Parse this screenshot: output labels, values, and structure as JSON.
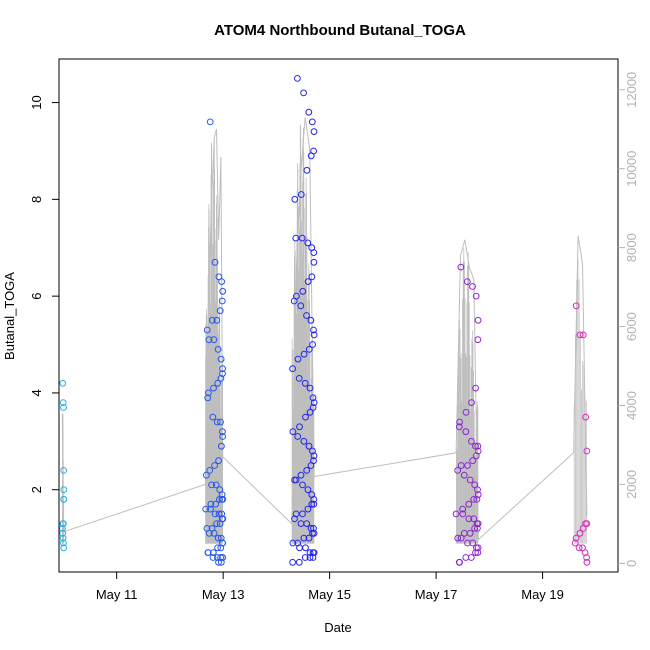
{
  "chart_data": {
    "type": "scatter",
    "title": "ATOM4 Northbound Butanal_TOGA",
    "xlabel": "Date",
    "ylabel": "Butanal_TOGA",
    "x_axis": {
      "type": "date",
      "range": [
        "2018-05-09 22:00",
        "2018-05-20 10:00"
      ],
      "ticks": [
        "2018-05-11",
        "2018-05-13",
        "2018-05-15",
        "2018-05-17",
        "2018-05-19"
      ],
      "tick_labels": [
        "May 11",
        "May 13",
        "May 15",
        "May 17",
        "May 19"
      ]
    },
    "y_axis_left": {
      "range": [
        0.3,
        10.9
      ],
      "ticks": [
        2,
        4,
        6,
        8,
        10
      ]
    },
    "y_axis_right": {
      "range": [
        -220,
        12780
      ],
      "ticks": [
        0,
        2000,
        4000,
        6000,
        8000,
        10000,
        12000
      ],
      "color": "#b3b3b3"
    },
    "grid": false,
    "point_colors": {
      "start": "#29b3e6",
      "middle": "#2222ee",
      "end": "#ee2cb4"
    },
    "line_color": "#bebebe",
    "clusters": [
      {
        "date": "2018-05-09",
        "t_start": "2018-05-09 23:30",
        "t_end": "2018-05-10 00:10",
        "values": [
          4.2,
          3.8,
          3.7,
          2.4,
          2.0,
          1.8,
          1.8,
          1.3,
          1.3,
          1.2,
          1.1,
          1.0,
          0.9,
          0.8
        ]
      },
      {
        "date": "2018-05-12/13",
        "t_start": "2018-05-12 16:00",
        "t_end": "2018-05-12 23:50",
        "values": [
          9.6,
          6.7,
          6.4,
          6.3,
          6.1,
          5.9,
          5.7,
          5.5,
          5.5,
          5.3,
          5.1,
          5.1,
          4.9,
          4.7,
          4.5,
          4.4,
          4.3,
          4.2,
          4.1,
          4.0,
          3.9,
          3.5,
          3.4,
          3.4,
          3.2,
          3.1,
          2.9,
          2.6,
          2.5,
          2.4,
          2.3,
          2.1,
          2.1,
          2.0,
          1.9,
          1.8,
          1.8,
          1.8,
          1.7,
          1.7,
          1.6,
          1.6,
          1.5,
          1.5,
          1.5,
          1.4,
          1.4,
          1.3,
          1.3,
          1.2,
          1.2,
          1.1,
          1.1,
          1.0,
          1.0,
          0.9,
          0.9,
          0.8,
          0.8,
          0.7,
          0.7,
          0.7,
          0.6,
          0.6,
          0.6,
          0.6,
          0.6,
          0.5,
          0.5
        ]
      },
      {
        "date": "2018-05-14",
        "t_start": "2018-05-14 07:00",
        "t_end": "2018-05-14 17:00",
        "values": [
          10.5,
          10.2,
          9.8,
          9.6,
          9.4,
          9.0,
          8.9,
          8.6,
          8.1,
          8.0,
          7.2,
          7.2,
          7.1,
          7.0,
          6.9,
          6.7,
          6.4,
          6.3,
          6.1,
          6.0,
          5.9,
          5.8,
          5.6,
          5.5,
          5.3,
          5.2,
          5.0,
          4.9,
          4.8,
          4.7,
          4.5,
          4.3,
          4.2,
          4.1,
          3.9,
          3.8,
          3.7,
          3.6,
          3.5,
          3.3,
          3.2,
          3.1,
          3.0,
          2.9,
          2.8,
          2.7,
          2.6,
          2.5,
          2.4,
          2.3,
          2.2,
          2.2,
          2.1,
          2.0,
          1.9,
          1.8,
          1.7,
          1.7,
          1.6,
          1.5,
          1.5,
          1.4,
          1.3,
          1.3,
          1.2,
          1.2,
          1.1,
          1.1,
          1.0,
          1.0,
          0.9,
          0.9,
          0.8,
          0.8,
          0.7,
          0.7,
          0.7,
          0.6,
          0.6,
          0.6,
          0.5,
          0.5
        ]
      },
      {
        "date": "2018-05-17",
        "t_start": "2018-05-17 09:00",
        "t_end": "2018-05-17 19:00",
        "values": [
          6.6,
          6.3,
          6.2,
          6.0,
          5.5,
          5.1,
          4.1,
          3.8,
          3.6,
          3.4,
          3.3,
          3.2,
          3.0,
          2.9,
          2.9,
          2.8,
          2.7,
          2.6,
          2.5,
          2.5,
          2.4,
          2.3,
          2.2,
          2.1,
          2.0,
          1.9,
          1.8,
          1.8,
          1.7,
          1.6,
          1.5,
          1.5,
          1.4,
          1.4,
          1.3,
          1.3,
          1.2,
          1.2,
          1.1,
          1.1,
          1.0,
          1.0,
          0.9,
          0.9,
          0.8,
          0.8,
          0.7,
          0.7,
          0.6,
          0.6,
          0.5,
          0.5
        ]
      },
      {
        "date": "2018-05-19",
        "t_start": "2018-05-19 14:00",
        "t_end": "2018-05-19 20:00",
        "values": [
          5.8,
          5.2,
          5.2,
          3.5,
          2.8,
          1.3,
          1.3,
          1.2,
          1.1,
          1.0,
          0.9,
          0.8,
          0.8,
          0.7,
          0.6,
          0.5
        ]
      }
    ],
    "line_series": {
      "name": "",
      "axis": "right",
      "points": [
        [
          "2018-05-09 23:30",
          3800
        ],
        [
          "2018-05-09 23:50",
          1500
        ],
        [
          "2018-05-10 00:10",
          800
        ],
        [
          "2018-05-12 16:00",
          2000
        ],
        [
          "2018-05-12 17:00",
          5800
        ],
        [
          "2018-05-12 18:00",
          7800
        ],
        [
          "2018-05-12 19:00",
          9500
        ],
        [
          "2018-05-12 20:00",
          10800
        ],
        [
          "2018-05-12 21:00",
          11000
        ],
        [
          "2018-05-12 22:00",
          8200
        ],
        [
          "2018-05-12 23:00",
          10300
        ],
        [
          "2018-05-12 23:50",
          2700
        ],
        [
          "2018-05-14 07:00",
          1000
        ],
        [
          "2018-05-14 09:00",
          7500
        ],
        [
          "2018-05-14 11:00",
          9900
        ],
        [
          "2018-05-14 13:00",
          11300
        ],
        [
          "2018-05-14 15:00",
          10500
        ],
        [
          "2018-05-14 17:00",
          2200
        ],
        [
          "2018-05-17 09:00",
          2800
        ],
        [
          "2018-05-17 11:00",
          7800
        ],
        [
          "2018-05-17 13:00",
          8200
        ],
        [
          "2018-05-17 15:00",
          7500
        ],
        [
          "2018-05-17 17:00",
          7200
        ],
        [
          "2018-05-17 19:00",
          600
        ],
        [
          "2018-05-19 14:00",
          2800
        ],
        [
          "2018-05-19 16:00",
          8300
        ],
        [
          "2018-05-19 18:00",
          7600
        ],
        [
          "2018-05-19 20:00",
          1200
        ]
      ]
    }
  }
}
